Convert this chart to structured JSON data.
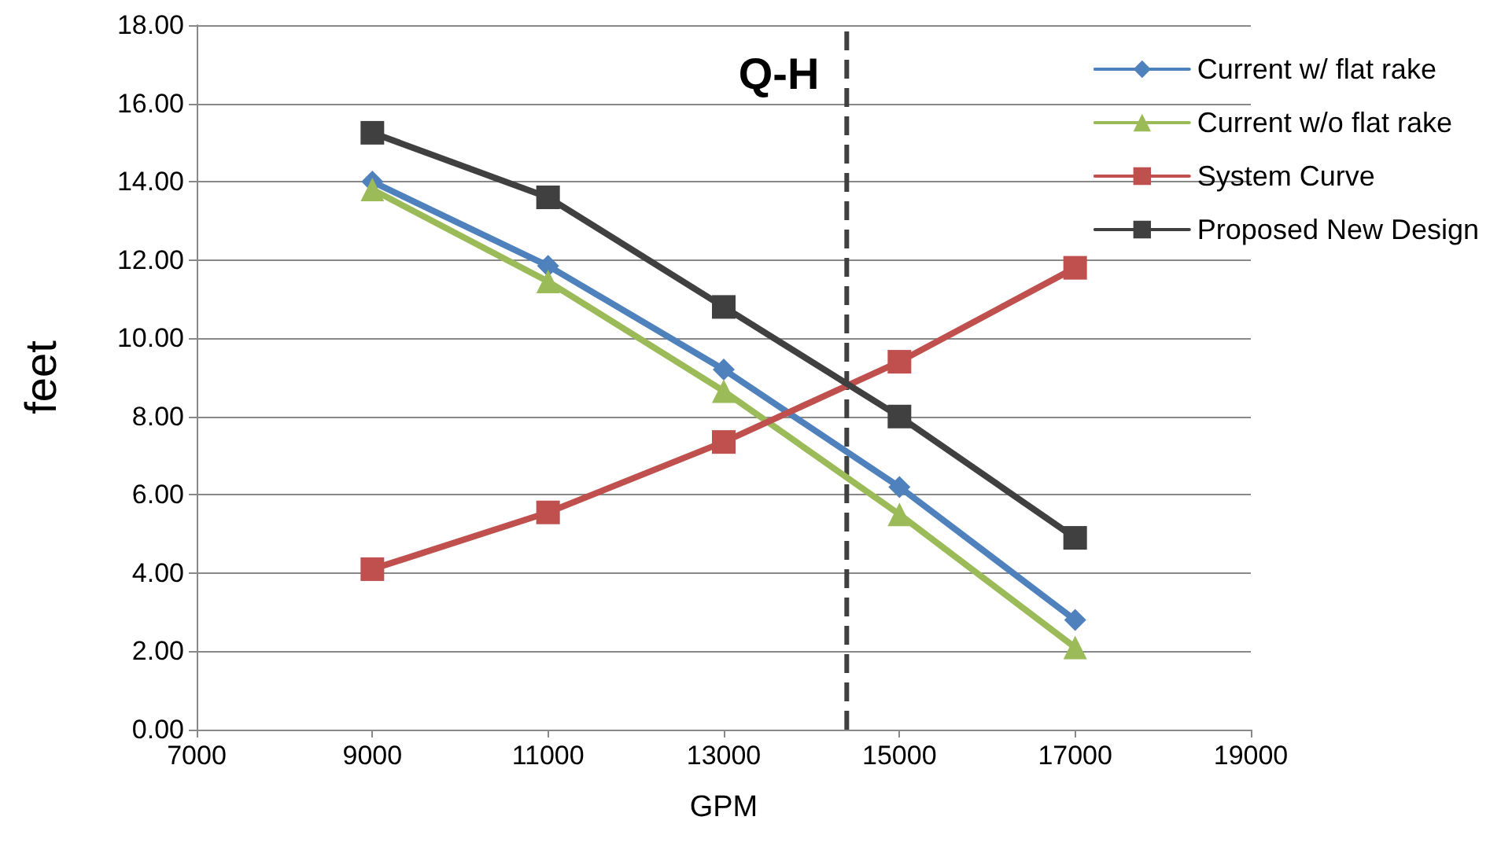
{
  "chart_data": {
    "type": "line",
    "title": "Q-H",
    "xlabel": "GPM",
    "ylabel": "feet",
    "x": [
      9000,
      11000,
      13000,
      15000,
      17000
    ],
    "series": [
      {
        "name": "Current w/ flat rake",
        "color": "#4f81bd",
        "marker": "diamond",
        "values": [
          14.0,
          11.85,
          9.2,
          6.2,
          2.8
        ]
      },
      {
        "name": "Current w/o flat rake",
        "color": "#9bbb59",
        "marker": "triangle",
        "values": [
          13.8,
          11.45,
          8.65,
          5.5,
          2.1
        ]
      },
      {
        "name": "System Curve",
        "color": "#c0504d",
        "marker": "square",
        "values": [
          4.1,
          5.55,
          7.35,
          9.4,
          11.8
        ]
      },
      {
        "name": "Proposed New Design",
        "color": "#404040",
        "marker": "square",
        "values": [
          15.25,
          13.6,
          10.8,
          8.0,
          4.9
        ]
      }
    ],
    "xlim": [
      7000,
      19000
    ],
    "xticks": [
      7000,
      9000,
      11000,
      13000,
      15000,
      17000,
      19000
    ],
    "ylim": [
      0,
      18
    ],
    "yticks": [
      {
        "value": 0,
        "label": "0.00"
      },
      {
        "value": 2,
        "label": "2.00"
      },
      {
        "value": 4,
        "label": "4.00"
      },
      {
        "value": 6,
        "label": "6.00"
      },
      {
        "value": 8,
        "label": "8.00"
      },
      {
        "value": 10,
        "label": "10.00"
      },
      {
        "value": 12,
        "label": "12.00"
      },
      {
        "value": 14,
        "label": "14.00"
      },
      {
        "value": 16,
        "label": "16.00"
      },
      {
        "value": 18,
        "label": "18.00"
      }
    ],
    "ref_lines": [
      {
        "axis": "x",
        "value": 14400,
        "color": "#404040",
        "line_style": "dashed"
      }
    ],
    "grid": "y",
    "legend": "top right",
    "line_style": "solid"
  }
}
